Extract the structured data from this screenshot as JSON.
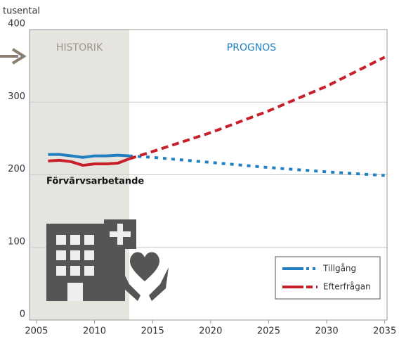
{
  "chart_data": {
    "type": "line",
    "y_label": "tusental",
    "annotations": [
      "HISTORIK",
      "PROGNOS",
      "Förvärvsarbetande"
    ],
    "history_end": 2013,
    "x": [
      2006,
      2007,
      2008,
      2009,
      2010,
      2011,
      2012,
      2013,
      2015,
      2020,
      2025,
      2030,
      2035
    ],
    "series": [
      {
        "name": "Tillgång",
        "color": "#1f7fc0",
        "values": [
          228,
          228,
          226,
          224,
          226,
          226,
          227,
          226,
          224,
          217,
          210,
          204,
          199
        ]
      },
      {
        "name": "Efterfrågan",
        "color": "#c8202a",
        "values": [
          219,
          220,
          218,
          213,
          215,
          215,
          216,
          222,
          232,
          258,
          288,
          322,
          362
        ]
      }
    ],
    "xlim": [
      2004.4,
      2035.2
    ],
    "xticks": [
      2005,
      2010,
      2015,
      2020,
      2025,
      2030,
      2035
    ],
    "ylim": [
      0,
      400
    ],
    "yticks": [
      0,
      100,
      200,
      300,
      400
    ],
    "grid": true,
    "legend": "lower right"
  }
}
